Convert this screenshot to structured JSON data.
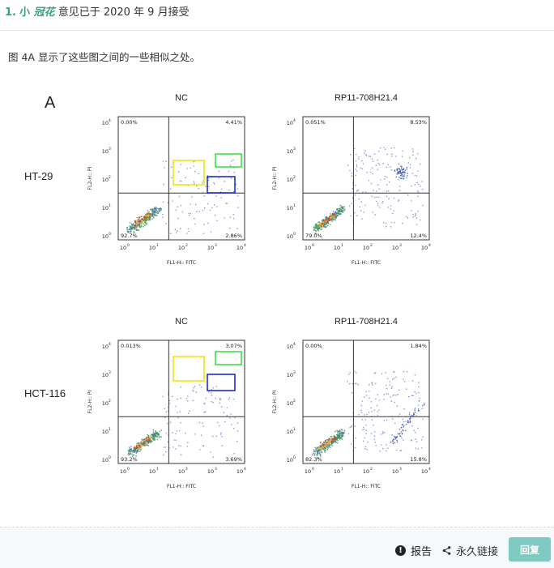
{
  "header": {
    "number": "1.",
    "user_prefix": "小",
    "user_italic": "冠花",
    "rest": "意见已于 2020 年 9 月接受"
  },
  "body": {
    "text": "图 4A 显示了这些图之间的一些相似之处。"
  },
  "figure": {
    "panel_label": "A",
    "rows": [
      {
        "label": "HT-29",
        "plots": [
          {
            "title": "NC",
            "quadrants": {
              "tl": "0.00%",
              "tr": "4.41%",
              "bl": "92.7%",
              "br": "2.86%"
            },
            "boxes": true
          },
          {
            "title": "RP11-708H21.4",
            "quadrants": {
              "tl": "0.051%",
              "tr": "8.53%",
              "bl": "79.0%",
              "br": "12.4%"
            },
            "boxes": false
          }
        ]
      },
      {
        "label": "HCT-116",
        "plots": [
          {
            "title": "NC",
            "quadrants": {
              "tl": "0.013%",
              "tr": "3.07%",
              "bl": "93.2%",
              "br": "3.69%"
            },
            "boxes": true
          },
          {
            "title": "RP11-708H21.4",
            "quadrants": {
              "tl": "0.00%",
              "tr": "1.84%",
              "bl": "82.3%",
              "br": "15.8%"
            },
            "boxes": false
          }
        ]
      }
    ],
    "x_axis_label": "FL1-H:: FITC",
    "y_axis_label": "FL2-H:: PI",
    "tick_labels": [
      "10",
      "10",
      "10",
      "10",
      "10"
    ],
    "tick_exponents": [
      "0",
      "1",
      "2",
      "3",
      "4"
    ],
    "colors": {
      "dots": "#5b6fc4",
      "dense": "#e0c030",
      "box_yellow": "#f0e000",
      "box_green": "#33dd33",
      "box_blue": "#1020d0"
    }
  },
  "footer": {
    "report_label": "报告",
    "report_icon": "exclamation-circle-icon",
    "permalink_label": "永久链接",
    "permalink_icon": "share-icon",
    "reply_label": "回复"
  }
}
